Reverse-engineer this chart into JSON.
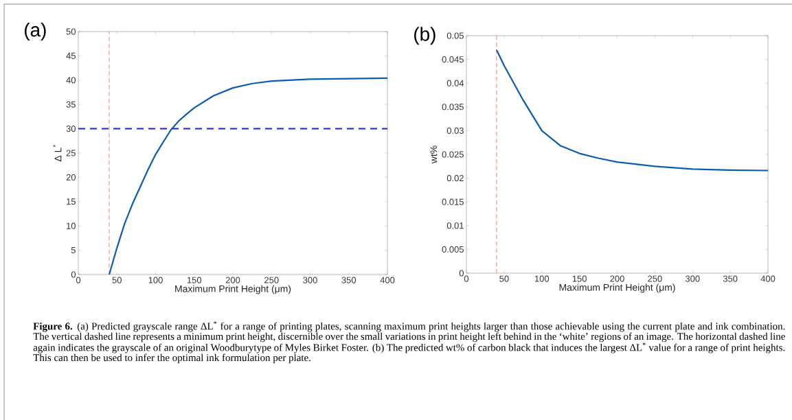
{
  "chart_data": [
    {
      "type": "line",
      "title": "(a)",
      "xlabel": "Maximum Print Height (μm)",
      "ylabel": "Δ L$^{*}$",
      "x": [
        40,
        50,
        60,
        70,
        80,
        90,
        100,
        110,
        120,
        130,
        140,
        150,
        175,
        200,
        225,
        250,
        300,
        350,
        400
      ],
      "series": [
        {
          "color": "#0b5cb0",
          "values": [
            0,
            5.5,
            10.5,
            14.5,
            18,
            21.5,
            24.7,
            27.3,
            29.8,
            31.6,
            33,
            34.3,
            36.8,
            38.4,
            39.3,
            39.8,
            40.2,
            40.3,
            40.4
          ]
        }
      ],
      "xlim": [
        0,
        400
      ],
      "xticks": [
        0,
        50,
        100,
        150,
        200,
        250,
        300,
        350,
        400
      ],
      "ylim": [
        0,
        50
      ],
      "yticks": [
        0,
        5,
        10,
        15,
        20,
        25,
        30,
        35,
        40,
        45,
        50
      ],
      "grid": false,
      "ref_lines": [
        {
          "axis": "x",
          "value": 40,
          "color": "#ff5a5a",
          "line_style": "dashed"
        },
        {
          "axis": "y",
          "value": 30,
          "color": "#1a1aff",
          "line_style": "dashed"
        }
      ],
      "annotations": [
        "**Figure 6.** (a) Predicted grayscale range ΔL$^{*}$ for a range of printing plates, scanning maximum print heights larger than those achievable using the current plate and ink combination. The vertical dashed line represents a minimum print height, discernible over the small variations in print height left behind in the ‘white’ regions of an image. The horizontal dashed line again indicates the grayscale of an original Woodburytype of Myles Birket Foster. (b) The predicted wt% of carbon black that induces the largest ΔL$^{*}$ value for a range of print heights. This can then be used to infer the optimal ink formulation per plate."
      ]
    },
    {
      "type": "line",
      "title": "(b)",
      "xlabel": "Maximum Print Height (μm)",
      "ylabel": "wt%",
      "x": [
        40,
        50,
        75,
        100,
        125,
        150,
        175,
        200,
        250,
        300,
        350,
        400
      ],
      "series": [
        {
          "color": "#0b5cb0",
          "values": [
            0.047,
            0.0437,
            0.0365,
            0.03,
            0.0268,
            0.0252,
            0.0242,
            0.0234,
            0.0225,
            0.0219,
            0.0217,
            0.0216
          ]
        }
      ],
      "xlim": [
        0,
        400
      ],
      "xticks": [
        0,
        50,
        100,
        150,
        200,
        250,
        300,
        350,
        400
      ],
      "ylim": [
        0,
        0.05
      ],
      "yticks": [
        0,
        0.005,
        0.01,
        0.015,
        0.02,
        0.025,
        0.03,
        0.035,
        0.04,
        0.045,
        0.05
      ],
      "grid": false,
      "ref_lines": [
        {
          "axis": "x",
          "value": 40,
          "color": "#ff5a5a",
          "line_style": "dashed"
        }
      ]
    }
  ]
}
